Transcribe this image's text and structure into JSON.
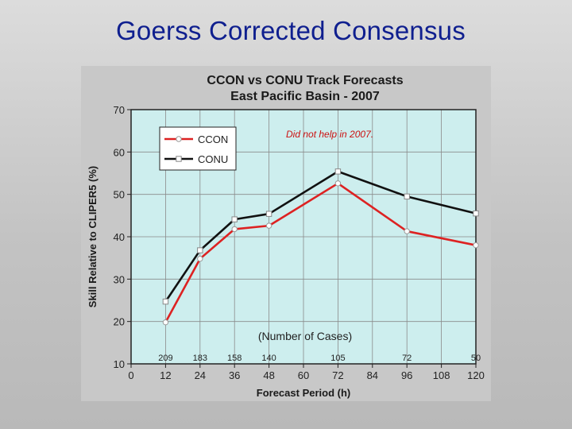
{
  "slide": {
    "title": "Goerss Corrected Consensus"
  },
  "chart_data": {
    "type": "line",
    "title": "CCON vs CONU Track Forecasts",
    "subtitle": "East Pacific Basin - 2007",
    "xlabel": "Forecast Period (h)",
    "ylabel": "Skill Relative to CLIPER5 (%)",
    "xlim": [
      0,
      120
    ],
    "ylim": [
      10,
      70
    ],
    "xticks": [
      0,
      12,
      24,
      36,
      48,
      60,
      72,
      84,
      96,
      108,
      120
    ],
    "yticks": [
      10,
      20,
      30,
      40,
      50,
      60,
      70
    ],
    "grid": true,
    "legend_position": "top-left",
    "x": [
      12,
      24,
      36,
      48,
      72,
      96,
      120
    ],
    "series": [
      {
        "name": "CCON",
        "color": "#dd2222",
        "marker": "circle",
        "values": [
          19.8,
          34.8,
          41.8,
          42.6,
          52.6,
          41.3,
          38.0
        ]
      },
      {
        "name": "CONU",
        "color": "#111111",
        "marker": "square",
        "values": [
          24.7,
          36.8,
          44.1,
          45.4,
          55.4,
          49.5,
          45.5
        ]
      }
    ],
    "cases_label": "(Number of Cases)",
    "cases": [
      {
        "x": 12,
        "n": "209"
      },
      {
        "x": 24,
        "n": "183"
      },
      {
        "x": 36,
        "n": "158"
      },
      {
        "x": 48,
        "n": "140"
      },
      {
        "x": 72,
        "n": "105"
      },
      {
        "x": 96,
        "n": "72"
      },
      {
        "x": 120,
        "n": "50"
      }
    ],
    "annotation": "Did not help in 2007.",
    "colors": {
      "plot_background": "#cdeeee",
      "grid": "#8a8a8a",
      "frame": "#222222",
      "title": "#1a1a1a",
      "annotation": "#cc1111"
    }
  }
}
